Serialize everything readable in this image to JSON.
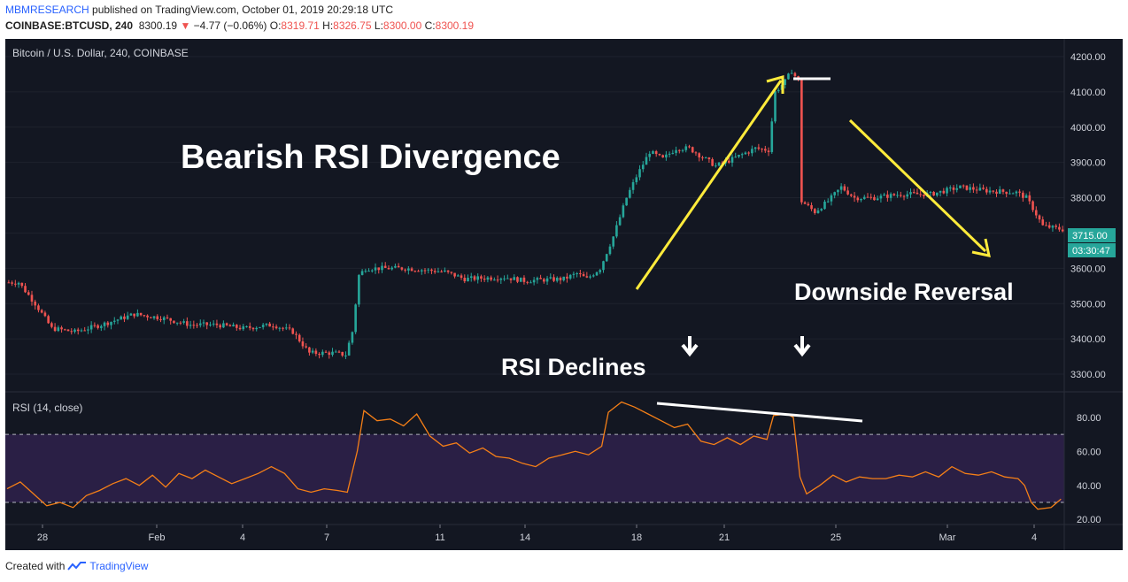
{
  "header": {
    "publisher": "MBMRESEARCH",
    "published_text": "published on TradingView.com, October 01, 2019 20:29:18 UTC",
    "symbol": "COINBASE:BTCUSD, 240",
    "price": "8300.19",
    "change": "−4.77 (−0.06%)",
    "o_label": "O:",
    "o_value": "8319.71",
    "h_label": "H:",
    "h_value": "8326.75",
    "l_label": "L:",
    "l_value": "8300.00",
    "c_label": "C:",
    "c_value": "8300.19"
  },
  "footer": {
    "created_with": "Created with",
    "brand": "TradingView"
  },
  "colors": {
    "up": "#26a69a",
    "down": "#ef5350",
    "rsi_line": "#f57f17",
    "annot_yellow": "#ffeb3b",
    "bg": "#131722",
    "rsi_band": "#2a1f45"
  },
  "chart_data": [
    {
      "type": "candlestick",
      "title": "Bitcoin / U.S. Dollar, 240, COINBASE",
      "ylim": [
        3250,
        4250
      ],
      "y_ticks": [
        "4200.00",
        "4100.00",
        "4000.00",
        "3900.00",
        "3800.00",
        "3700.00",
        "3600.00",
        "3500.00",
        "3400.00",
        "3300.00"
      ],
      "last_price_label": "3715.00",
      "countdown_label": "03:30:47",
      "x_ticks": [
        "28",
        "Feb",
        "4",
        "7",
        "11",
        "14",
        "18",
        "21",
        "25",
        "Mar",
        "4"
      ],
      "price_path": [
        [
          0,
          3560
        ],
        [
          3,
          3560
        ],
        [
          8,
          3500
        ],
        [
          13,
          3430
        ],
        [
          20,
          3420
        ],
        [
          28,
          3440
        ],
        [
          38,
          3470
        ],
        [
          46,
          3460
        ],
        [
          55,
          3440
        ],
        [
          63,
          3440
        ],
        [
          71,
          3430
        ],
        [
          80,
          3440
        ],
        [
          86,
          3420
        ],
        [
          91,
          3360
        ],
        [
          98,
          3360
        ],
        [
          102,
          3355
        ],
        [
          104,
          3420
        ],
        [
          106,
          3580
        ],
        [
          108,
          3600
        ],
        [
          120,
          3600
        ],
        [
          132,
          3590
        ],
        [
          138,
          3570
        ],
        [
          150,
          3575
        ],
        [
          156,
          3565
        ],
        [
          168,
          3570
        ],
        [
          172,
          3585
        ],
        [
          175,
          3570
        ],
        [
          179,
          3600
        ],
        [
          183,
          3690
        ],
        [
          187,
          3800
        ],
        [
          190,
          3860
        ],
        [
          194,
          3930
        ],
        [
          198,
          3910
        ],
        [
          202,
          3940
        ],
        [
          206,
          3940
        ],
        [
          214,
          3890
        ],
        [
          218,
          3905
        ],
        [
          226,
          3940
        ],
        [
          230,
          3935
        ],
        [
          232,
          4100
        ],
        [
          235,
          4130
        ],
        [
          237,
          4160
        ],
        [
          239,
          4130
        ],
        [
          240,
          3790
        ],
        [
          244,
          3760
        ],
        [
          248,
          3790
        ],
        [
          252,
          3830
        ],
        [
          256,
          3800
        ],
        [
          262,
          3800
        ],
        [
          270,
          3810
        ],
        [
          279,
          3810
        ],
        [
          288,
          3830
        ],
        [
          296,
          3820
        ],
        [
          305,
          3815
        ],
        [
          308,
          3800
        ],
        [
          310,
          3770
        ],
        [
          313,
          3720
        ],
        [
          319,
          3710
        ]
      ],
      "annotations": {
        "headline": "Bearish RSI Divergence",
        "reversal": "Downside Reversal",
        "rsi_note": "RSI Declines"
      }
    },
    {
      "type": "line",
      "title": "RSI (14, close)",
      "ylim": [
        17,
        95
      ],
      "y_ticks": [
        "80.00",
        "60.00",
        "40.00",
        "20.00"
      ],
      "bands": [
        30,
        70
      ],
      "values": [
        [
          0,
          38
        ],
        [
          4,
          42
        ],
        [
          8,
          35
        ],
        [
          12,
          28
        ],
        [
          16,
          30
        ],
        [
          20,
          27
        ],
        [
          24,
          34
        ],
        [
          28,
          37
        ],
        [
          32,
          41
        ],
        [
          36,
          44
        ],
        [
          40,
          40
        ],
        [
          44,
          46
        ],
        [
          48,
          39
        ],
        [
          52,
          47
        ],
        [
          56,
          44
        ],
        [
          60,
          49
        ],
        [
          64,
          45
        ],
        [
          68,
          41
        ],
        [
          72,
          44
        ],
        [
          76,
          47
        ],
        [
          80,
          51
        ],
        [
          84,
          47
        ],
        [
          88,
          38
        ],
        [
          92,
          36
        ],
        [
          96,
          38
        ],
        [
          100,
          37
        ],
        [
          103,
          36
        ],
        [
          106,
          60
        ],
        [
          108,
          84
        ],
        [
          112,
          78
        ],
        [
          116,
          79
        ],
        [
          120,
          75
        ],
        [
          124,
          82
        ],
        [
          128,
          69
        ],
        [
          132,
          63
        ],
        [
          136,
          65
        ],
        [
          140,
          59
        ],
        [
          144,
          62
        ],
        [
          148,
          57
        ],
        [
          152,
          56
        ],
        [
          156,
          53
        ],
        [
          160,
          51
        ],
        [
          164,
          56
        ],
        [
          168,
          58
        ],
        [
          172,
          60
        ],
        [
          176,
          58
        ],
        [
          180,
          63
        ],
        [
          182,
          83
        ],
        [
          186,
          89
        ],
        [
          190,
          86
        ],
        [
          194,
          82
        ],
        [
          198,
          78
        ],
        [
          202,
          74
        ],
        [
          206,
          76
        ],
        [
          210,
          66
        ],
        [
          214,
          64
        ],
        [
          218,
          68
        ],
        [
          222,
          64
        ],
        [
          226,
          69
        ],
        [
          230,
          67
        ],
        [
          232,
          81
        ],
        [
          236,
          82
        ],
        [
          238,
          80
        ],
        [
          240,
          45
        ],
        [
          242,
          35
        ],
        [
          246,
          40
        ],
        [
          250,
          46
        ],
        [
          254,
          42
        ],
        [
          258,
          45
        ],
        [
          262,
          44
        ],
        [
          266,
          44
        ],
        [
          270,
          46
        ],
        [
          274,
          45
        ],
        [
          278,
          48
        ],
        [
          282,
          45
        ],
        [
          286,
          51
        ],
        [
          290,
          47
        ],
        [
          294,
          46
        ],
        [
          298,
          48
        ],
        [
          302,
          45
        ],
        [
          306,
          44
        ],
        [
          308,
          40
        ],
        [
          310,
          30
        ],
        [
          312,
          26
        ],
        [
          316,
          27
        ],
        [
          319,
          32
        ]
      ]
    }
  ]
}
